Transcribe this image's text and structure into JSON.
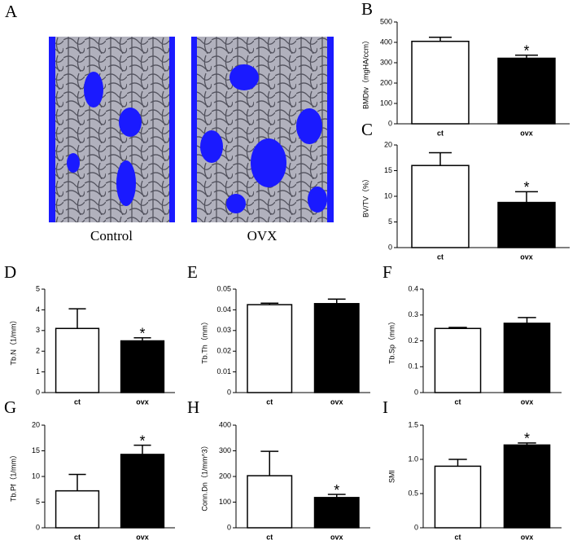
{
  "panel_a": {
    "letter": "A",
    "labels": [
      "Control",
      "OVX"
    ]
  },
  "chart_data": [
    {
      "type": "bar",
      "letter": "B",
      "ylabel": "BMDtv（mgHA/ccm）",
      "categories": [
        "ct",
        "ovx"
      ],
      "values": [
        405,
        322
      ],
      "errors": [
        20,
        15
      ],
      "colors": [
        "#ffffff",
        "#000000"
      ],
      "ylim": [
        0,
        500
      ],
      "yticks": [
        0,
        100,
        200,
        300,
        400,
        500
      ],
      "annotations": [
        {
          "text": "*",
          "x": "ovx"
        }
      ]
    },
    {
      "type": "bar",
      "letter": "C",
      "ylabel": "BV/TV（%）",
      "categories": [
        "ct",
        "ovx"
      ],
      "values": [
        16,
        8.8
      ],
      "errors": [
        2.5,
        2.1
      ],
      "colors": [
        "#ffffff",
        "#000000"
      ],
      "ylim": [
        0,
        20
      ],
      "yticks": [
        0,
        5,
        10,
        15,
        20
      ],
      "annotations": [
        {
          "text": "*",
          "x": "ovx"
        }
      ]
    },
    {
      "type": "bar",
      "letter": "D",
      "ylabel": "Tb.N（1/mm）",
      "categories": [
        "ct",
        "ovx"
      ],
      "values": [
        3.1,
        2.5
      ],
      "errors": [
        0.95,
        0.15
      ],
      "colors": [
        "#ffffff",
        "#000000"
      ],
      "ylim": [
        0,
        5
      ],
      "yticks": [
        0,
        1,
        2,
        3,
        4,
        5
      ],
      "annotations": [
        {
          "text": "*",
          "x": "ovx"
        }
      ]
    },
    {
      "type": "bar",
      "letter": "E",
      "ylabel": "Tb.Th（mm）",
      "categories": [
        "ct",
        "ovx"
      ],
      "values": [
        0.0425,
        0.043
      ],
      "errors": [
        0.0007,
        0.0022
      ],
      "colors": [
        "#ffffff",
        "#000000"
      ],
      "ylim": [
        0,
        0.05
      ],
      "yticks": [
        0,
        0.01,
        0.02,
        0.03,
        0.04,
        0.05
      ]
    },
    {
      "type": "bar",
      "letter": "F",
      "ylabel": "Tb.Sp（mm）",
      "categories": [
        "ct",
        "ovx"
      ],
      "values": [
        0.248,
        0.268
      ],
      "errors": [
        0.004,
        0.022
      ],
      "colors": [
        "#ffffff",
        "#000000"
      ],
      "ylim": [
        0,
        0.4
      ],
      "yticks": [
        0,
        0.1,
        0.2,
        0.3,
        0.4
      ]
    },
    {
      "type": "bar",
      "letter": "G",
      "ylabel": "Tb.Pf（1/mm）",
      "categories": [
        "ct",
        "ovx"
      ],
      "values": [
        7.2,
        14.3
      ],
      "errors": [
        3.2,
        1.8
      ],
      "colors": [
        "#ffffff",
        "#000000"
      ],
      "ylim": [
        0,
        20
      ],
      "yticks": [
        0,
        5,
        10,
        15,
        20
      ],
      "annotations": [
        {
          "text": "*",
          "x": "ovx"
        }
      ]
    },
    {
      "type": "bar",
      "letter": "H",
      "ylabel": "Conn.Dn（1/mm^3）",
      "categories": [
        "ct",
        "ovx"
      ],
      "values": [
        203,
        118
      ],
      "errors": [
        95,
        12
      ],
      "colors": [
        "#ffffff",
        "#000000"
      ],
      "ylim": [
        0,
        400
      ],
      "yticks": [
        0,
        100,
        200,
        300,
        400
      ],
      "annotations": [
        {
          "text": "*",
          "x": "ovx"
        }
      ]
    },
    {
      "type": "bar",
      "letter": "I",
      "ylabel": "SMI",
      "categories": [
        "ct",
        "ovx"
      ],
      "values": [
        0.9,
        1.21
      ],
      "errors": [
        0.1,
        0.03
      ],
      "colors": [
        "#ffffff",
        "#000000"
      ],
      "ylim": [
        0,
        1.5
      ],
      "yticks": [
        0,
        0.5,
        {
          "value": 1,
          "label": "1.0"
        },
        1.5
      ],
      "annotations": [
        {
          "text": "*",
          "x": "ovx"
        }
      ]
    }
  ]
}
